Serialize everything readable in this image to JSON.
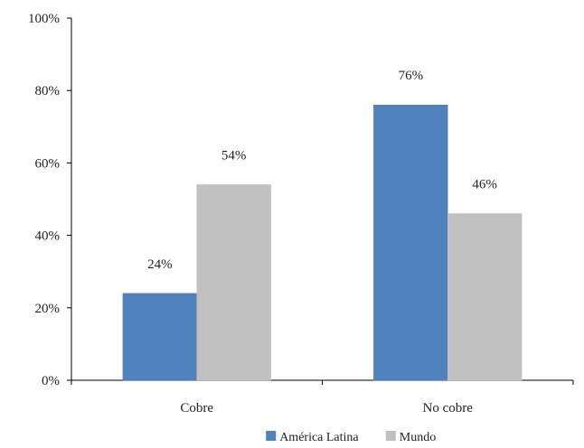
{
  "chart_data": {
    "type": "bar",
    "categories": [
      "Cobre",
      "No cobre"
    ],
    "series": [
      {
        "name": "América Latina",
        "values": [
          24,
          76
        ],
        "labels": [
          "24%",
          "76%"
        ],
        "color": "#4f81bd"
      },
      {
        "name": "Mundo",
        "values": [
          54,
          46
        ],
        "labels": [
          "54%",
          "46%"
        ],
        "color": "#c0c0c0"
      }
    ],
    "yticks": [
      "0%",
      "20%",
      "40%",
      "60%",
      "80%",
      "100%"
    ],
    "ylim": [
      0,
      100
    ],
    "grid": false,
    "legend_position": "bottom"
  }
}
